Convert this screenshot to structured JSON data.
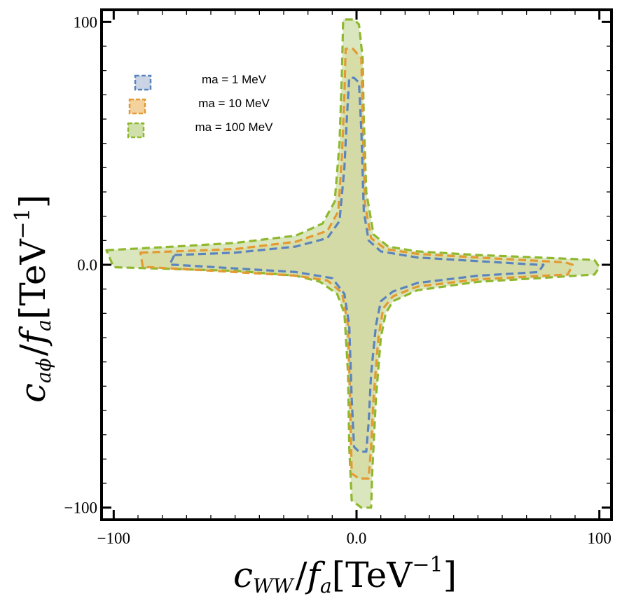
{
  "chart_data": {
    "type": "area",
    "title": "",
    "xlabel": {
      "sym": "c",
      "sub": "WW",
      "mid": "/",
      "sym2": "f",
      "sub2": "a",
      "unit": "[TeV",
      "sup": "−1",
      "close": "]"
    },
    "ylabel": {
      "sym": "c",
      "sub": "aϕ",
      "mid": "/",
      "sym2": "f",
      "sub2": "a",
      "unit": "[TeV",
      "sup": "−1",
      "close": "]"
    },
    "xlim": [
      -105,
      105
    ],
    "ylim": [
      -105,
      105
    ],
    "x_ticks": [
      {
        "value": -100,
        "label": "−100"
      },
      {
        "value": 0,
        "label": "0.0"
      },
      {
        "value": 100,
        "label": "100"
      }
    ],
    "y_ticks": [
      {
        "value": -100,
        "label": "−100"
      },
      {
        "value": 0,
        "label": "0.0"
      },
      {
        "value": 100,
        "label": "100"
      }
    ],
    "minor_tick_step": 10,
    "grid": false,
    "legend_position": "top-left",
    "series": [
      {
        "name": "ma = 1 MeV",
        "stroke": "#5b84bf",
        "fill": "#c4cfe2",
        "fill_opacity": 0.7,
        "boundary": [
          [
            -75,
            4
          ],
          [
            -50,
            5
          ],
          [
            -25,
            7.5
          ],
          [
            -12,
            11
          ],
          [
            -7,
            18
          ],
          [
            -5,
            40
          ],
          [
            -4,
            60
          ],
          [
            -3,
            77
          ],
          [
            -1,
            77
          ],
          [
            1,
            75
          ],
          [
            2,
            55
          ],
          [
            3,
            22
          ],
          [
            5,
            10
          ],
          [
            10,
            5.5
          ],
          [
            25,
            3
          ],
          [
            50,
            1.5
          ],
          [
            75,
            0
          ],
          [
            77,
            0
          ],
          [
            75,
            -3
          ],
          [
            50,
            -4.5
          ],
          [
            25,
            -7.5
          ],
          [
            15,
            -11
          ],
          [
            10,
            -15
          ],
          [
            8,
            -25
          ],
          [
            6,
            -45
          ],
          [
            5,
            -65
          ],
          [
            4,
            -77
          ],
          [
            1,
            -77
          ],
          [
            -1,
            -75
          ],
          [
            -2,
            -55
          ],
          [
            -3,
            -25
          ],
          [
            -5,
            -12
          ],
          [
            -10,
            -5.5
          ],
          [
            -25,
            -3
          ],
          [
            -50,
            -1.5
          ],
          [
            -75,
            0
          ],
          [
            -77,
            0
          ]
        ]
      },
      {
        "name": "ma = 10 MeV",
        "stroke": "#e39a32",
        "fill": "#f2cd93",
        "fill_opacity": 0.7,
        "boundary": [
          [
            -89,
            5
          ],
          [
            -50,
            6.5
          ],
          [
            -25,
            9.5
          ],
          [
            -12,
            14
          ],
          [
            -7.5,
            22
          ],
          [
            -6,
            45
          ],
          [
            -5,
            70
          ],
          [
            -4.5,
            89
          ],
          [
            -1.5,
            89
          ],
          [
            2,
            85
          ],
          [
            2.5,
            60
          ],
          [
            3.5,
            25
          ],
          [
            6,
            11
          ],
          [
            12,
            6.5
          ],
          [
            25,
            4.5
          ],
          [
            50,
            3
          ],
          [
            86,
            1
          ],
          [
            89,
            0
          ],
          [
            87,
            -4
          ],
          [
            50,
            -6
          ],
          [
            25,
            -9
          ],
          [
            15,
            -13
          ],
          [
            11,
            -18
          ],
          [
            9,
            -30
          ],
          [
            7,
            -55
          ],
          [
            6,
            -75
          ],
          [
            5,
            -88
          ],
          [
            1,
            -88
          ],
          [
            -2,
            -86
          ],
          [
            -2.5,
            -60
          ],
          [
            -3.5,
            -25
          ],
          [
            -6,
            -11.5
          ],
          [
            -12,
            -6.5
          ],
          [
            -25,
            -4.5
          ],
          [
            -50,
            -3
          ],
          [
            -85,
            -1
          ],
          [
            -88,
            -1
          ]
        ]
      },
      {
        "name": "ma = 100 MeV",
        "stroke": "#8fb82e",
        "fill": "#cadda2",
        "fill_opacity": 0.7,
        "boundary": [
          [
            -103,
            6
          ],
          [
            -75,
            7.5
          ],
          [
            -50,
            9
          ],
          [
            -25,
            12
          ],
          [
            -14,
            17
          ],
          [
            -9,
            26
          ],
          [
            -7,
            50
          ],
          [
            -6,
            80
          ],
          [
            -5.5,
            101
          ],
          [
            -1,
            101
          ],
          [
            1,
            99
          ],
          [
            2.5,
            85
          ],
          [
            3,
            60
          ],
          [
            4,
            30
          ],
          [
            7,
            12.5
          ],
          [
            13,
            7.5
          ],
          [
            25,
            5.5
          ],
          [
            50,
            4
          ],
          [
            75,
            3
          ],
          [
            98,
            2
          ],
          [
            100,
            -1
          ],
          [
            98,
            -4
          ],
          [
            75,
            -5.5
          ],
          [
            50,
            -7
          ],
          [
            25,
            -10.5
          ],
          [
            15,
            -15
          ],
          [
            12,
            -20
          ],
          [
            10,
            -30
          ],
          [
            8,
            -55
          ],
          [
            6.5,
            -85
          ],
          [
            6,
            -100
          ],
          [
            2,
            -100
          ],
          [
            -2,
            -97
          ],
          [
            -3,
            -75
          ],
          [
            -3.5,
            -45
          ],
          [
            -5,
            -20
          ],
          [
            -8,
            -12
          ],
          [
            -15,
            -7
          ],
          [
            -25,
            -4.5
          ],
          [
            -50,
            -2.5
          ],
          [
            -100,
            -1
          ]
        ]
      }
    ]
  }
}
